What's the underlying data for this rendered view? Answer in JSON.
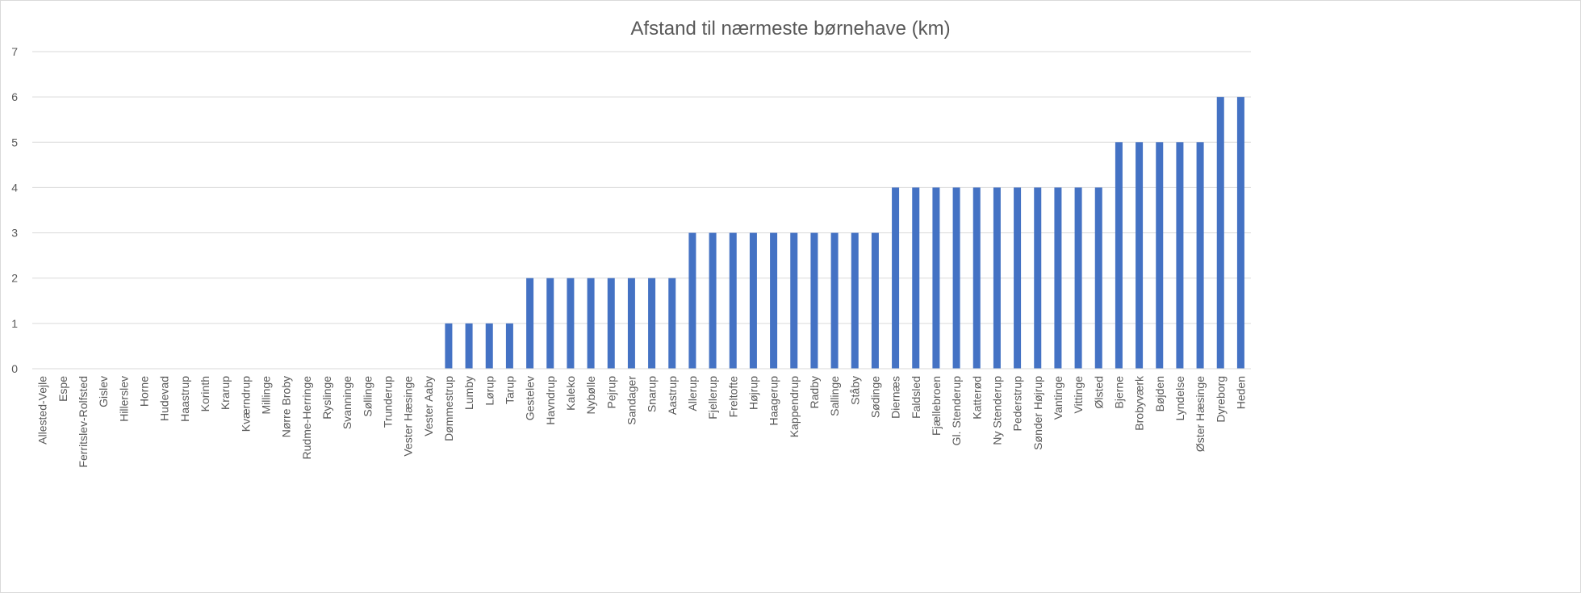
{
  "chart_data": {
    "type": "bar",
    "title": "Afstand til nærmeste børnehave (km)",
    "xlabel": "",
    "ylabel": "",
    "ylim": [
      0,
      7
    ],
    "yticks": [
      "0",
      "1",
      "2",
      "3",
      "4",
      "5",
      "6",
      "7"
    ],
    "grid": true,
    "legend": "none",
    "bar_color": "#4472c4",
    "grid_color": "#d9d9d9",
    "categories": [
      "Allested-Vejle",
      "Espe",
      "Ferritslev-Rolfsted",
      "Gislev",
      "Hillerslev",
      "Horne",
      "Hudevad",
      "Haastrup",
      "Korinth",
      "Krarup",
      "Kværndrup",
      "Millinge",
      "Nørre Broby",
      "Rudme-Herringe",
      "Ryslinge",
      "Svanninge",
      "Søllinge",
      "Trunderup",
      "Vester Hæsinge",
      "Vester Aaby",
      "Dømmestrup",
      "Lumby",
      "Lørup",
      "Tarup",
      "Gestelev",
      "Havndrup",
      "Kaleko",
      "Nybølle",
      "Pejrup",
      "Sandager",
      "Snarup",
      "Aastrup",
      "Allerup",
      "Fjellerup",
      "Freltofte",
      "Højrup",
      "Haagerup",
      "Kappendrup",
      "Radby",
      "Sallinge",
      "Ståby",
      "Sødinge",
      "Diernæs",
      "Faldsled",
      "Fjællebroen",
      "Gl. Stenderup",
      "Katterød",
      "Ny Stenderup",
      "Pederstrup",
      "Sønder Højrup",
      "Vantinge",
      "Vittinge",
      "Ølsted",
      "Bjerne",
      "Brobyværk",
      "Bøjden",
      "Lyndelse",
      "Øster Hæsinge",
      "Dyreborg",
      "Heden"
    ],
    "values": [
      0,
      0,
      0,
      0,
      0,
      0,
      0,
      0,
      0,
      0,
      0,
      0,
      0,
      0,
      0,
      0,
      0,
      0,
      0,
      0,
      1,
      1,
      1,
      1,
      2,
      2,
      2,
      2,
      2,
      2,
      2,
      2,
      3,
      3,
      3,
      3,
      3,
      3,
      3,
      3,
      3,
      3,
      4,
      4,
      4,
      4,
      4,
      4,
      4,
      4,
      4,
      4,
      4,
      5,
      5,
      5,
      5,
      5,
      6,
      6
    ]
  }
}
